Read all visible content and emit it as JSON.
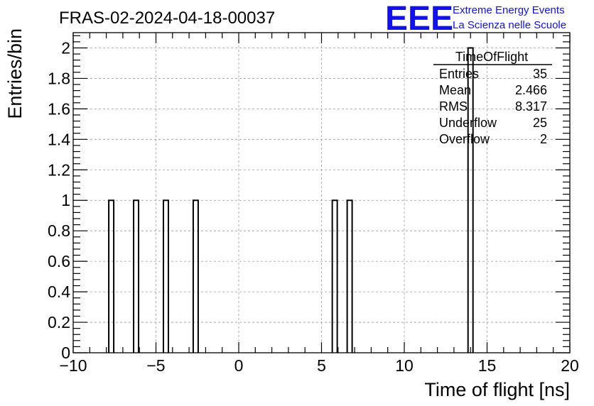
{
  "chart_data": {
    "type": "bar",
    "title": "FRAS-02-2024-04-18-00037",
    "xlabel": "Time of flight [ns]",
    "ylabel": "Entries/bin",
    "xlim": [
      -10,
      20
    ],
    "ylim": [
      0,
      2.1
    ],
    "x_ticks": [
      -10,
      -5,
      0,
      5,
      10,
      15,
      20
    ],
    "x_tick_labels": [
      "−10",
      "−5",
      "0",
      "5",
      "10",
      "15",
      "20"
    ],
    "y_ticks": [
      0,
      0.2,
      0.4,
      0.6,
      0.8,
      1,
      1.2,
      1.4,
      1.6,
      1.8,
      2
    ],
    "y_tick_labels": [
      "0",
      "0.2",
      "0.4",
      "0.6",
      "0.8",
      "1",
      "1.2",
      "1.4",
      "1.6",
      "1.8",
      "2"
    ],
    "grid": true,
    "bin_width": 0.3,
    "bins": [
      {
        "x": -7.7,
        "value": 1
      },
      {
        "x": -6.2,
        "value": 1
      },
      {
        "x": -4.4,
        "value": 1
      },
      {
        "x": -2.6,
        "value": 1
      },
      {
        "x": 5.8,
        "value": 1
      },
      {
        "x": 6.7,
        "value": 1
      },
      {
        "x": 14.0,
        "value": 2
      }
    ],
    "line_color": "#000000"
  },
  "stats_box": {
    "title": "TimeOfFlight",
    "rows": [
      {
        "label": "Entries",
        "value": "35"
      },
      {
        "label": "Mean",
        "value": "2.466"
      },
      {
        "label": "RMS",
        "value": "8.317"
      },
      {
        "label": "Underflow",
        "value": "25"
      },
      {
        "label": "Overflow",
        "value": "2"
      }
    ]
  },
  "logo": {
    "mark": "EEE",
    "line1": "Extreme Energy Events",
    "line2": "La Scienza nelle Scuole",
    "color": "#1010f0"
  }
}
